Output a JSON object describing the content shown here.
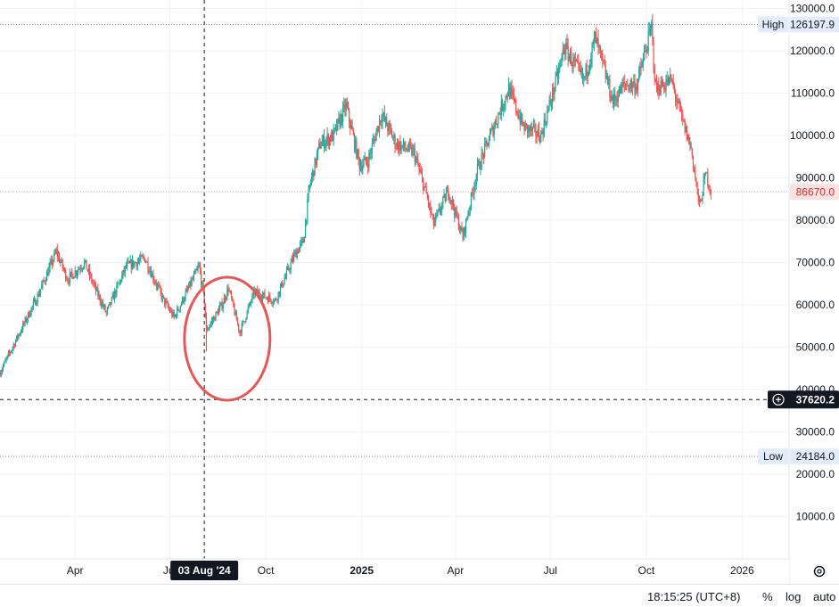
{
  "chart_data": {
    "type": "candlestick",
    "title": "",
    "xlabel": "",
    "ylabel": "",
    "y_axis_side": "right",
    "ylim": [
      0,
      132000
    ],
    "xlim": [
      "2024-01-20",
      "2026-02-15"
    ],
    "y_ticks": [
      "10000.0",
      "20000.0",
      "30000.0",
      "40000.0",
      "50000.0",
      "60000.0",
      "70000.0",
      "80000.0",
      "90000.0",
      "100000.0",
      "110000.0",
      "120000.0",
      "130000.0"
    ],
    "x_ticks": [
      {
        "date": "2024-04-01",
        "label": "Apr",
        "bold": false
      },
      {
        "date": "2024-07-01",
        "label": "Jul",
        "bold": false
      },
      {
        "date": "2024-10-01",
        "label": "Oct",
        "bold": false
      },
      {
        "date": "2025-01-01",
        "label": "2025",
        "bold": true
      },
      {
        "date": "2025-04-01",
        "label": "Apr",
        "bold": false
      },
      {
        "date": "2025-07-01",
        "label": "Jul",
        "bold": false
      },
      {
        "date": "2025-10-01",
        "label": "Oct",
        "bold": false
      },
      {
        "date": "2026-01-01",
        "label": "2026",
        "bold": false
      }
    ],
    "up_color": "#26a69a",
    "down_color": "#ef5350",
    "path": [
      [
        "2024-01-20",
        44000
      ],
      [
        "2024-02-05",
        52000
      ],
      [
        "2024-02-25",
        62000
      ],
      [
        "2024-03-14",
        72500
      ],
      [
        "2024-03-25",
        66000
      ],
      [
        "2024-04-10",
        70000
      ],
      [
        "2024-04-20",
        64000
      ],
      [
        "2024-05-01",
        58000
      ],
      [
        "2024-05-20",
        69000
      ],
      [
        "2024-06-07",
        71000
      ],
      [
        "2024-06-25",
        61000
      ],
      [
        "2024-07-05",
        57000
      ],
      [
        "2024-07-29",
        69000
      ],
      [
        "2024-08-03",
        61000
      ],
      [
        "2024-08-05",
        54000
      ],
      [
        "2024-08-20",
        60000
      ],
      [
        "2024-08-26",
        64000
      ],
      [
        "2024-09-06",
        53500
      ],
      [
        "2024-09-20",
        63000
      ],
      [
        "2024-10-10",
        61000
      ],
      [
        "2024-10-29",
        72000
      ],
      [
        "2024-11-06",
        75000
      ],
      [
        "2024-11-12",
        88000
      ],
      [
        "2024-11-22",
        98000
      ],
      [
        "2024-12-05",
        100000
      ],
      [
        "2024-12-17",
        107000
      ],
      [
        "2024-12-30",
        93000
      ],
      [
        "2025-01-07",
        94000
      ],
      [
        "2025-01-20",
        105000
      ],
      [
        "2025-02-03",
        98000
      ],
      [
        "2025-02-20",
        96000
      ],
      [
        "2025-03-04",
        86000
      ],
      [
        "2025-03-11",
        79000
      ],
      [
        "2025-03-25",
        87000
      ],
      [
        "2025-04-08",
        76000
      ],
      [
        "2025-04-22",
        92000
      ],
      [
        "2025-05-09",
        103000
      ],
      [
        "2025-05-22",
        111000
      ],
      [
        "2025-06-05",
        102000
      ],
      [
        "2025-06-22",
        100000
      ],
      [
        "2025-07-10",
        116000
      ],
      [
        "2025-07-14",
        121000
      ],
      [
        "2025-08-02",
        113000
      ],
      [
        "2025-08-13",
        123000
      ],
      [
        "2025-08-30",
        108000
      ],
      [
        "2025-09-10",
        112000
      ],
      [
        "2025-09-22",
        112000
      ],
      [
        "2025-10-06",
        125500
      ],
      [
        "2025-10-10",
        111000
      ],
      [
        "2025-10-25",
        113000
      ],
      [
        "2025-11-04",
        104000
      ],
      [
        "2025-11-13",
        97000
      ],
      [
        "2025-11-21",
        83000
      ],
      [
        "2025-11-27",
        91000
      ],
      [
        "2025-12-02",
        87000
      ]
    ],
    "high_line": {
      "label": "High",
      "value": "126197.9"
    },
    "low_line": {
      "label": "Low",
      "value": "24184.0"
    },
    "last_price": {
      "value": "86670.0"
    },
    "crosshair": {
      "date": "2024-08-03",
      "date_label": "03 Aug '24",
      "price": "37620.2"
    },
    "annotation": {
      "type": "ellipse",
      "color": "#e05a5a",
      "center_date": "2024-08-25",
      "center_price": 52000
    }
  },
  "status": {
    "time": "18:15:25 (UTC+8)",
    "percent": "%",
    "log": "log",
    "auto": "auto"
  },
  "colors": {
    "grid": "#f0f3fa",
    "axis_text": "#131722",
    "crosshair": "#131722",
    "label_bg": "#131722",
    "last_price_bg": "#fde2e2",
    "last_price_text": "#d32f2f",
    "high_low_bg": "#e3ecfb"
  }
}
